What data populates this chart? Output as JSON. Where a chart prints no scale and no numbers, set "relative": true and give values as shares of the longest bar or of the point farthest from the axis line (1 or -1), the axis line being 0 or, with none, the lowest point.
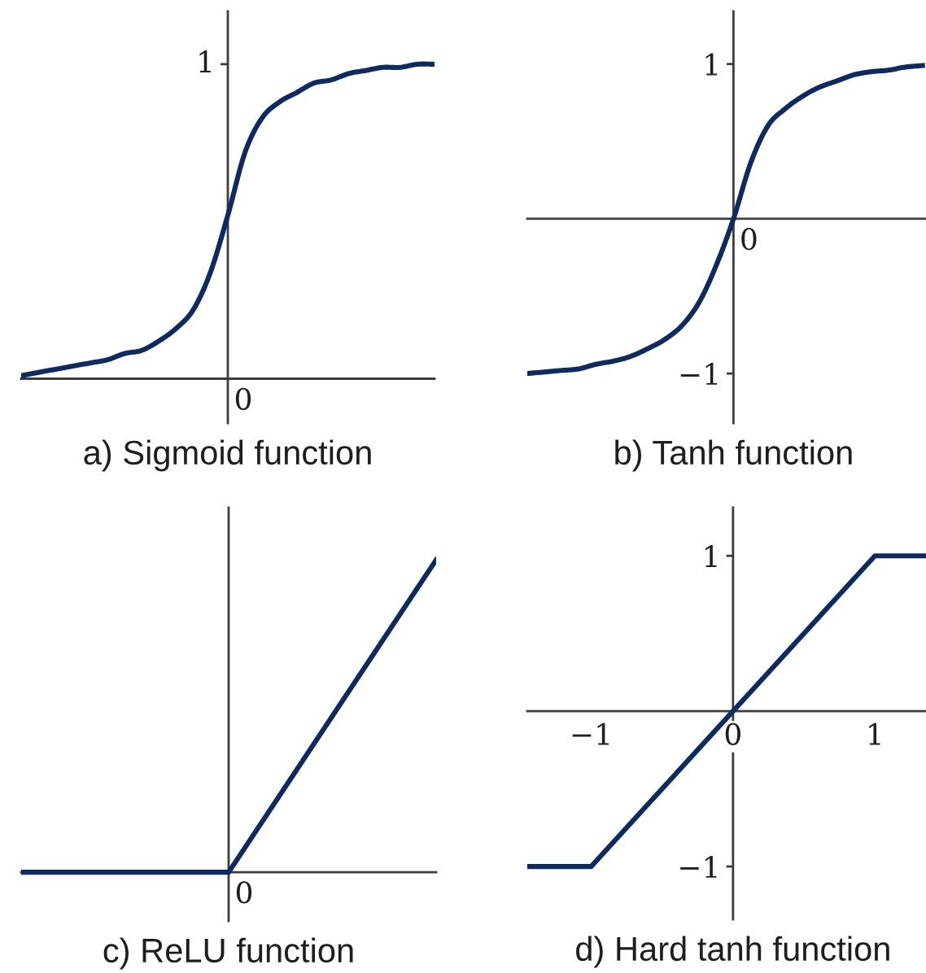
{
  "chart_data": [
    {
      "type": "line",
      "title": "a) Sigmoid function",
      "relative": true,
      "color": "#0f2a5f",
      "categories": [
        null,
        null,
        null,
        null,
        null,
        null,
        null,
        null,
        null,
        null,
        null,
        null,
        null,
        null,
        null,
        null,
        null,
        null,
        null,
        null,
        null,
        null,
        null,
        null,
        null
      ],
      "values": [
        0.01,
        0.02,
        0.03,
        0.04,
        0.05,
        0.06,
        0.08,
        0.09,
        0.12,
        0.16,
        0.22,
        0.34,
        0.52,
        0.72,
        0.83,
        0.88,
        0.91,
        0.94,
        0.95,
        0.97,
        0.98,
        0.99,
        0.99,
        1.0,
        1.0
      ],
      "annotations": [
        "0",
        "1"
      ]
    },
    {
      "type": "line",
      "title": "b) Tanh function",
      "color": "#0f2a5f",
      "categories": [
        null,
        null,
        null,
        null,
        null,
        null,
        null,
        null,
        null,
        null,
        null,
        null,
        null,
        null,
        null,
        null,
        null,
        null,
        null,
        null,
        null,
        null,
        null,
        null
      ],
      "values": [
        -1.0,
        -0.99,
        -0.98,
        -0.97,
        -0.94,
        -0.92,
        -0.89,
        -0.84,
        -0.78,
        -0.69,
        -0.54,
        -0.3,
        0,
        0.36,
        0.6,
        0.71,
        0.79,
        0.85,
        0.89,
        0.93,
        0.95,
        0.96,
        0.98,
        0.99
      ],
      "ylim": [
        -1.32,
        1.34
      ],
      "yticks": [
        {
          "value": -1,
          "label": "−1"
        },
        1
      ],
      "annotations": [
        "0"
      ]
    },
    {
      "type": "line",
      "title": "c) ReLU function",
      "relative": true,
      "color": "#0f2a5f",
      "categories": [
        null,
        null,
        null
      ],
      "values": [
        0,
        0,
        1
      ],
      "annotations": [
        "0"
      ]
    },
    {
      "type": "line",
      "title": "d) Hard tanh function",
      "color": "#0f2a5f",
      "x": [
        -1.44,
        -1,
        1,
        1.35
      ],
      "values": [
        -1,
        -1,
        1,
        1
      ],
      "xlim": [
        -1.45,
        1.36
      ],
      "xticks": [
        {
          "value": -1,
          "label": "−1"
        },
        {
          "value": 0,
          "label": "0"
        },
        1
      ],
      "ylim": [
        -1.34,
        1.31
      ],
      "yticks": [
        {
          "value": -1,
          "label": "−1"
        },
        1
      ]
    }
  ]
}
